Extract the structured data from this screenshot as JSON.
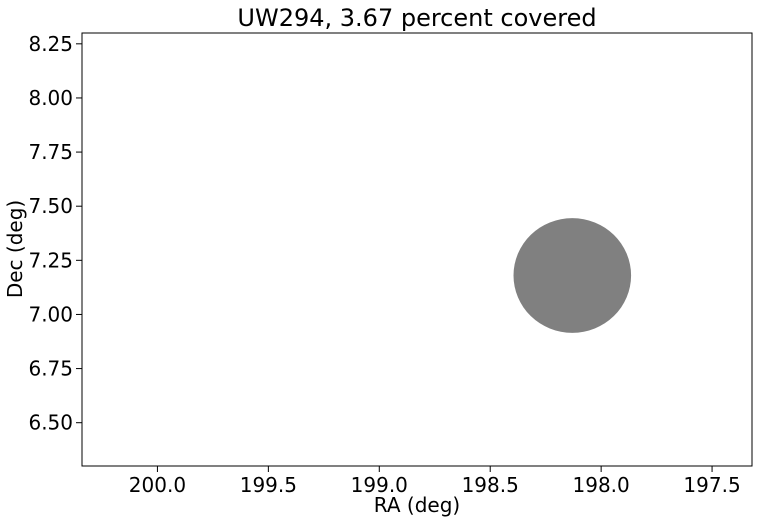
{
  "chart_data": {
    "type": "scatter",
    "title": "UW294, 3.67 percent covered",
    "xlabel": "RA (deg)",
    "ylabel": "Dec (deg)",
    "xlim": [
      200.34,
      197.32
    ],
    "ylim": [
      6.3,
      8.3
    ],
    "x_reversed": true,
    "x_ticks": [
      200.0,
      199.5,
      199.0,
      198.5,
      198.0,
      197.5
    ],
    "x_tick_labels": [
      "200.0",
      "199.5",
      "199.0",
      "198.5",
      "198.0",
      "197.5"
    ],
    "y_ticks": [
      6.5,
      6.75,
      7.0,
      7.25,
      7.5,
      7.75,
      8.0,
      8.25
    ],
    "y_tick_labels": [
      "6.50",
      "6.75",
      "7.00",
      "7.25",
      "7.50",
      "7.75",
      "8.00",
      "8.25"
    ],
    "grid": false,
    "circles": [
      {
        "ra": 198.13,
        "dec": 7.18,
        "radius_ra": 0.265,
        "radius_dec": 0.265,
        "color": "#808080"
      }
    ]
  }
}
